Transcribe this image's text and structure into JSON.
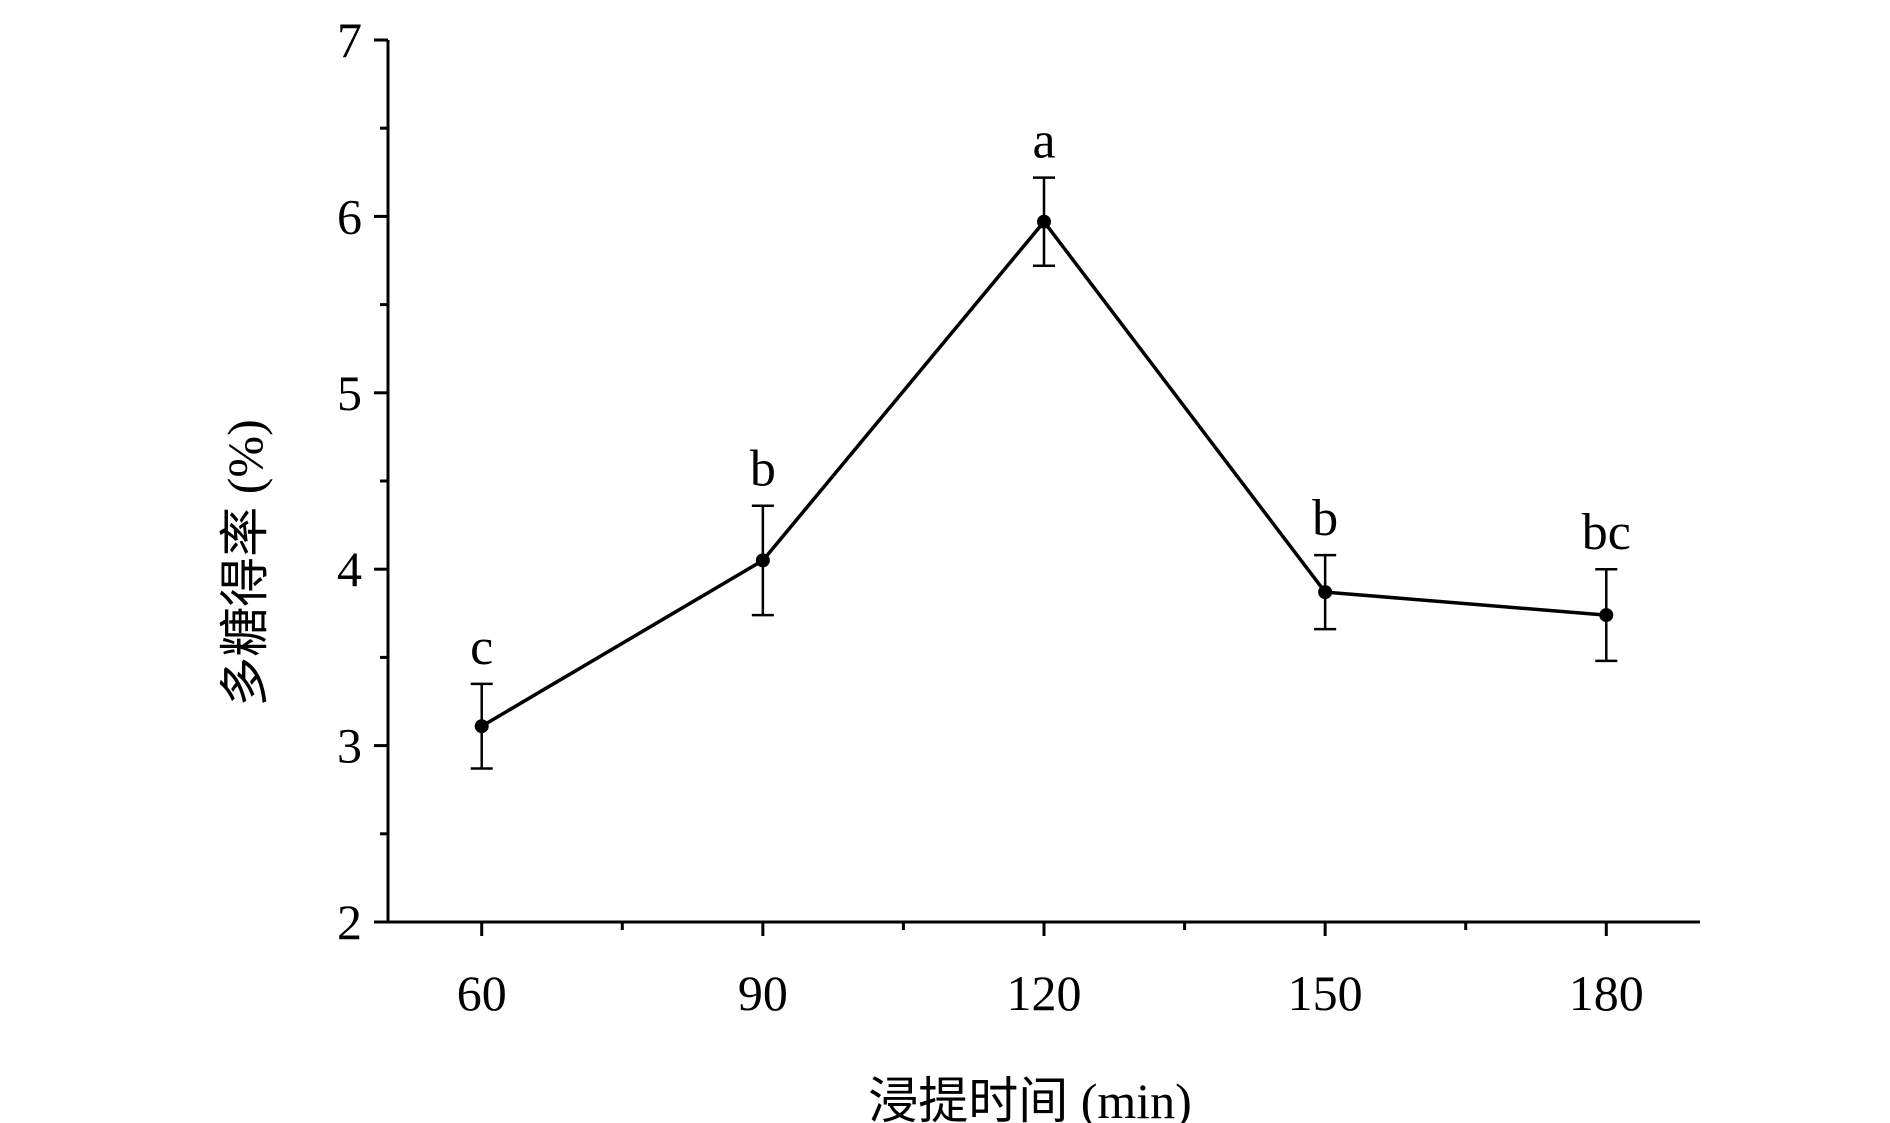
{
  "chart_data": {
    "type": "line",
    "title": "",
    "xlabel": "浸提时间 (min)",
    "ylabel": "多糖得率 (%)",
    "xlim": [
      50,
      190
    ],
    "ylim": [
      2,
      7
    ],
    "x_ticks": [
      60,
      90,
      120,
      150,
      180
    ],
    "x_minor_ticks": [
      75,
      105,
      135,
      165
    ],
    "y_ticks": [
      2,
      3,
      4,
      5,
      6,
      7
    ],
    "y_minor_ticks": [
      2.5,
      3.5,
      4.5,
      5.5,
      6.5
    ],
    "grid": false,
    "legend": "none",
    "color": "#000000",
    "series": [
      {
        "x": [
          60,
          90,
          120,
          150,
          180
        ],
        "values": [
          3.11,
          4.05,
          5.97,
          3.87,
          3.74
        ],
        "error": [
          0.24,
          0.31,
          0.25,
          0.21,
          0.26
        ],
        "labels": [
          "c",
          "b",
          "a",
          "b",
          "bc"
        ]
      }
    ]
  }
}
